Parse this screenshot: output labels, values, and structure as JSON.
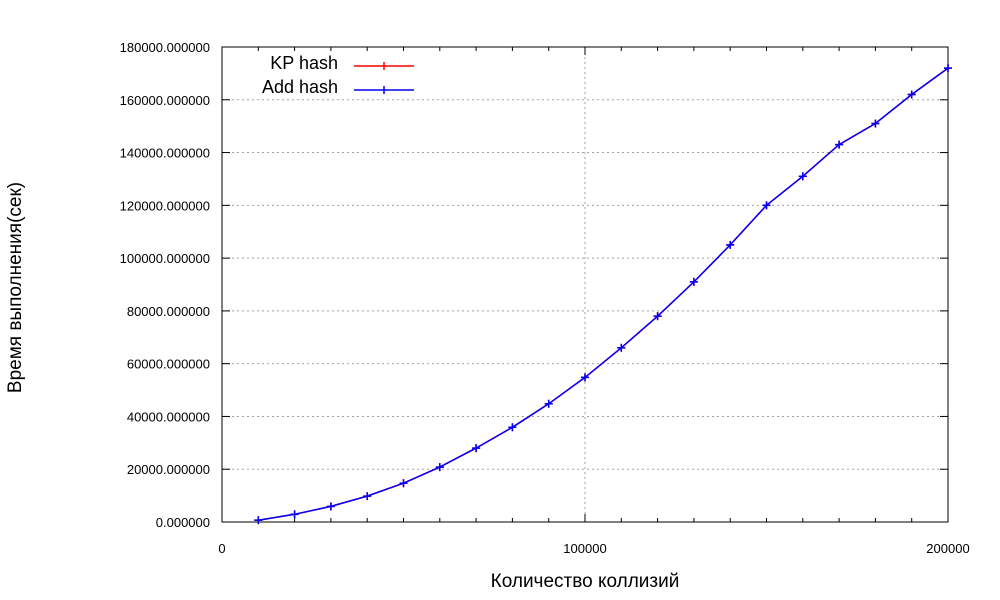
{
  "chart_data": {
    "type": "line",
    "title": "",
    "xlabel": "Количество коллизий",
    "ylabel": "Время выполнения(сек)",
    "xlim": [
      0,
      200000
    ],
    "ylim": [
      0,
      180000
    ],
    "x_ticks": [
      "0",
      "100000",
      "200000"
    ],
    "x_tick_values": [
      0,
      100000,
      200000
    ],
    "y_ticks": [
      "0.000000",
      "20000.000000",
      "40000.000000",
      "60000.000000",
      "80000.000000",
      "100000.000000",
      "120000.000000",
      "140000.000000",
      "160000.000000",
      "180000.000000"
    ],
    "y_tick_values": [
      0,
      20000,
      40000,
      60000,
      80000,
      100000,
      120000,
      140000,
      160000,
      180000
    ],
    "grid": true,
    "legend_position": "top-left",
    "x": [
      10000,
      20000,
      30000,
      40000,
      50000,
      60000,
      70000,
      80000,
      90000,
      100000,
      110000,
      120000,
      130000,
      140000,
      150000,
      160000,
      170000,
      180000,
      190000,
      200000
    ],
    "series": [
      {
        "name": "KP hash",
        "color": "#ff0000",
        "values": [
          700,
          2900,
          5900,
          9800,
          14700,
          20800,
          28000,
          35900,
          44800,
          54800,
          66000,
          78000,
          91000,
          105000,
          120000,
          131000,
          143000,
          151000,
          162000,
          172000
        ]
      },
      {
        "name": "Add hash",
        "color": "#0000ff",
        "values": [
          700,
          2900,
          5900,
          9800,
          14700,
          20800,
          28000,
          35900,
          44800,
          54800,
          66000,
          78000,
          91000,
          105000,
          120000,
          131000,
          143000,
          151000,
          162000,
          172000
        ]
      }
    ]
  }
}
